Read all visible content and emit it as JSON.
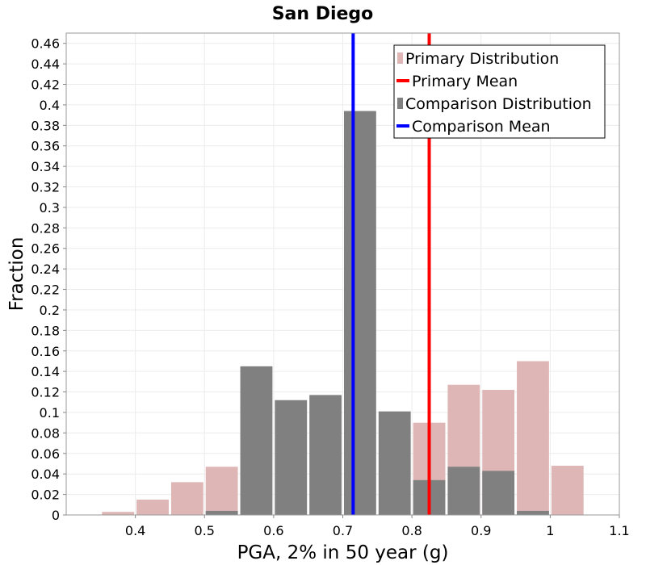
{
  "chart_data": {
    "type": "bar",
    "title": "San Diego",
    "xlabel": "PGA, 2% in 50 year (g)",
    "ylabel": "Fraction",
    "xlim": [
      0.3,
      1.1
    ],
    "ylim": [
      0,
      0.47
    ],
    "bin_width": 0.05,
    "x_ticks": [
      "0.4",
      "0.5",
      "0.6",
      "0.7",
      "0.8",
      "0.9",
      "1",
      "1.1"
    ],
    "y_ticks": [
      "0",
      "0.02",
      "0.04",
      "0.06",
      "0.08",
      "0.1",
      "0.12",
      "0.14",
      "0.16",
      "0.18",
      "0.2",
      "0.22",
      "0.24",
      "0.26",
      "0.28",
      "0.3",
      "0.32",
      "0.34",
      "0.36",
      "0.38",
      "0.4",
      "0.42",
      "0.44",
      "0.46"
    ],
    "grid": true,
    "legend_position": "top-right",
    "series": [
      {
        "name": "Primary Distribution",
        "kind": "histogram",
        "color": "#dfb6b6",
        "x": [
          0.375,
          0.425,
          0.475,
          0.525,
          0.825,
          0.875,
          0.925,
          0.975,
          1.025
        ],
        "values": [
          0.003,
          0.015,
          0.032,
          0.047,
          0.09,
          0.127,
          0.122,
          0.15,
          0.048
        ]
      },
      {
        "name": "Comparison Distribution",
        "kind": "histogram",
        "color": "#808080",
        "x": [
          0.525,
          0.575,
          0.625,
          0.675,
          0.725,
          0.775,
          0.825,
          0.875,
          0.925,
          0.975
        ],
        "values": [
          0.004,
          0.145,
          0.112,
          0.117,
          0.394,
          0.101,
          0.034,
          0.047,
          0.043,
          0.004
        ]
      },
      {
        "name": "Primary Mean",
        "kind": "vline",
        "color": "#ff0000",
        "x": 0.825
      },
      {
        "name": "Comparison Mean",
        "kind": "vline",
        "color": "#0000ff",
        "x": 0.715
      }
    ],
    "legend": [
      "Primary Distribution",
      "Primary Mean",
      "Comparison Distribution",
      "Comparison Mean"
    ]
  }
}
